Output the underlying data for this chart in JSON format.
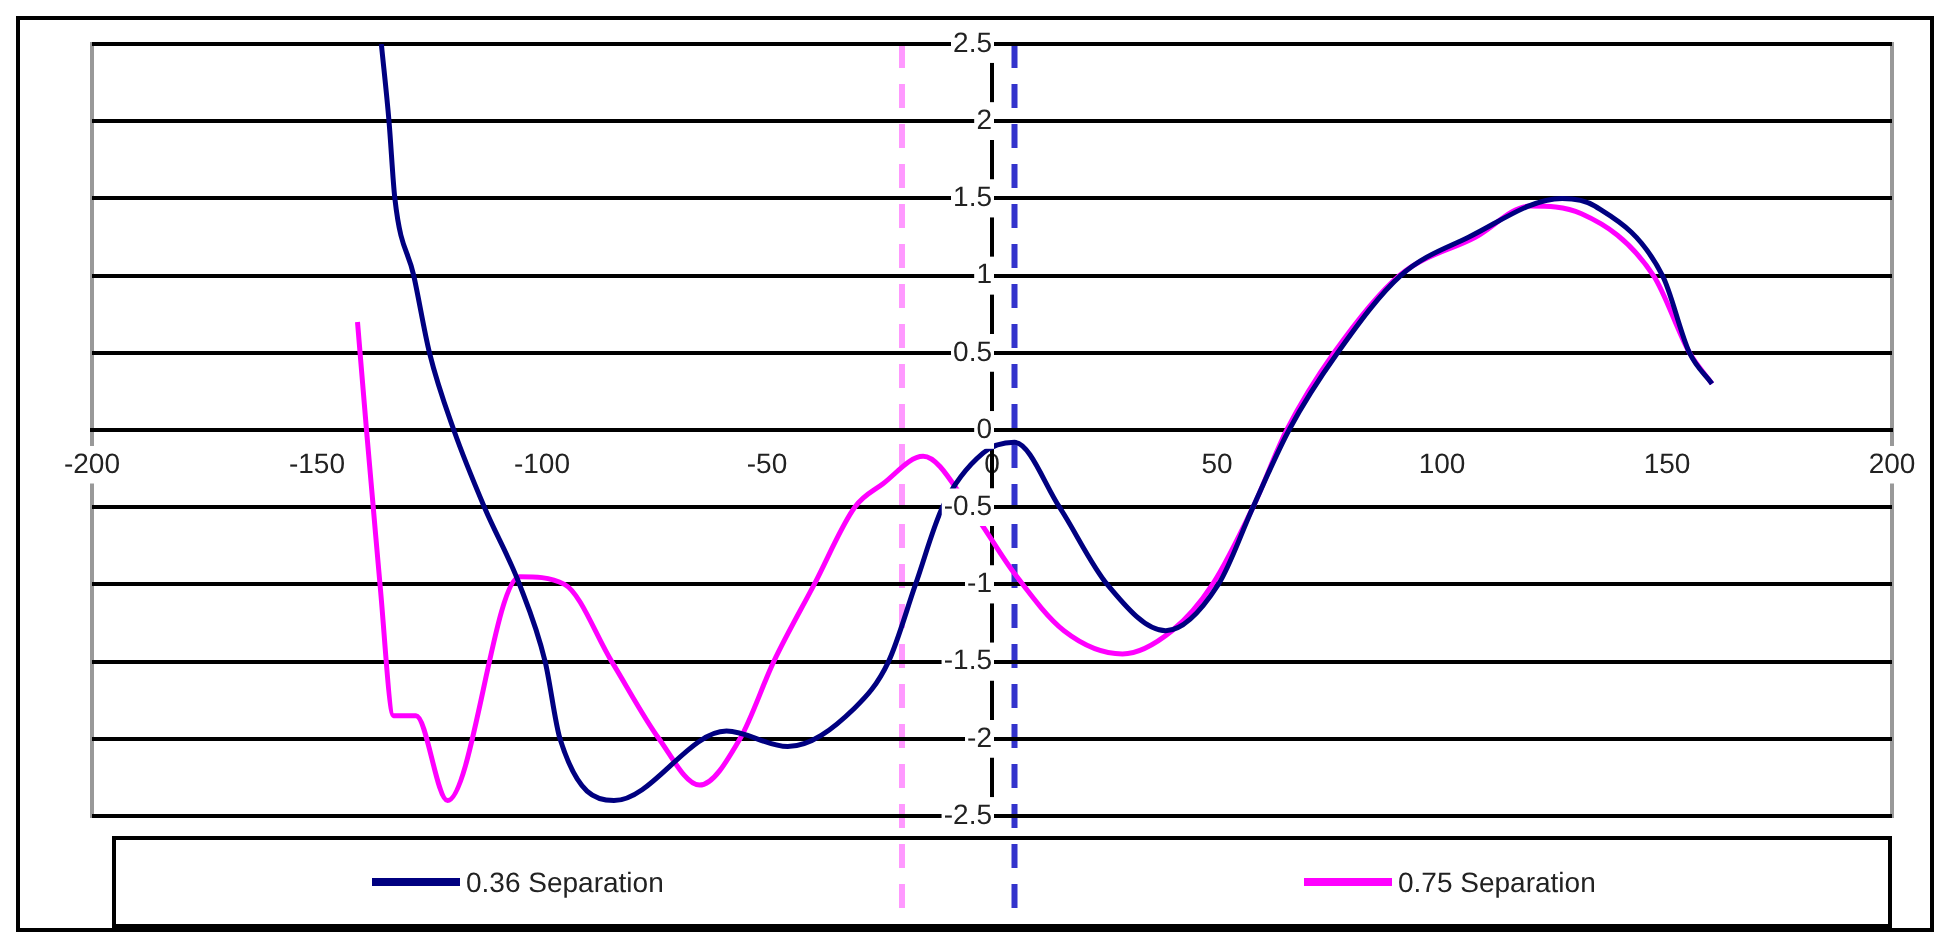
{
  "chart_data": {
    "type": "line",
    "xlim": [
      -200,
      200
    ],
    "xticks": [
      -200,
      -150,
      -100,
      -50,
      0,
      50,
      100,
      150,
      200
    ],
    "ylim": [
      -2.5,
      2.5
    ],
    "yticks": [
      -2.5,
      -2,
      -1.5,
      -1,
      -0.5,
      0,
      0.5,
      1,
      1.5,
      2,
      2.5
    ],
    "grid": "y",
    "legend": "bottom",
    "marker": "none",
    "line_style": "solid",
    "series": [
      {
        "name": "0.36 Separation",
        "color": "#000080",
        "x": [
          -135.7,
          -134,
          -132.7,
          -128.5,
          -125,
          -119.6,
          -112.8,
          -105,
          -99.3,
          -96,
          -84,
          -59,
          -45.4,
          -30.5,
          -23,
          -17,
          -11,
          -2,
          5,
          15,
          25.6,
          38.6,
          50.3,
          58,
          66,
          76.8,
          90.8,
          106,
          126.7,
          134,
          149,
          155,
          160
        ],
        "values": [
          2.5,
          2,
          1.5,
          1,
          0.5,
          0,
          -0.5,
          -1,
          -1.5,
          -2,
          -2.4,
          -1.95,
          -2.05,
          -1.8,
          -1.5,
          -1,
          -0.5,
          -0.15,
          -0.08,
          -0.5,
          -1,
          -1.3,
          -1,
          -0.5,
          0,
          0.5,
          1,
          1.25,
          1.5,
          1.45,
          1,
          0.5,
          0.3
        ]
      },
      {
        "name": "0.75 Separation",
        "color": "#ff00ff",
        "x": [
          -141,
          -139,
          -137.5,
          -136,
          -133,
          -128,
          -121,
          -105,
          -95,
          -84.5,
          -74,
          -65,
          -56,
          -48.5,
          -39.5,
          -30.5,
          -24.3,
          -15.3,
          -5,
          5,
          16,
          29,
          40,
          49,
          58,
          65.5,
          76,
          90.5,
          107.5,
          119.5,
          131,
          147,
          155,
          160
        ],
        "values": [
          0.7,
          0,
          -0.5,
          -1,
          -1.85,
          -1.85,
          -2.4,
          -0.95,
          -1,
          -1.5,
          -2,
          -2.3,
          -2,
          -1.5,
          -1,
          -0.5,
          -0.35,
          -0.17,
          -0.5,
          -0.93,
          -1.3,
          -1.45,
          -1.3,
          -1,
          -0.5,
          0,
          0.5,
          1,
          1.25,
          1.45,
          1.4,
          1,
          0.5,
          0.3
        ]
      }
    ],
    "ref_lines": [
      {
        "axis": "x",
        "value": -20,
        "color": "#ff99ff",
        "line_style": "dashed"
      },
      {
        "axis": "x",
        "value": 5,
        "color": "#3333cc",
        "line_style": "dashed"
      }
    ]
  }
}
